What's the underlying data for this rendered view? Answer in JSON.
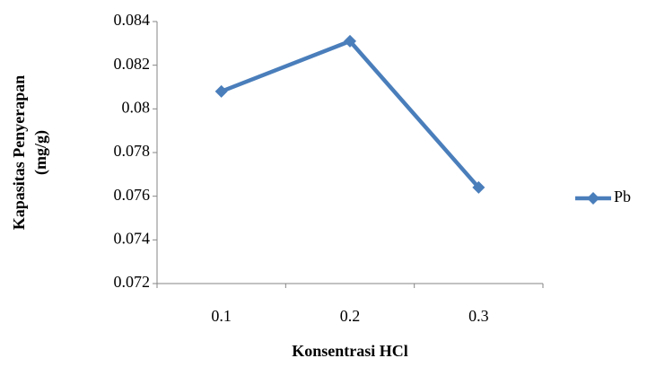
{
  "chart_data": {
    "type": "line",
    "x_label": "Konsentrasi HCl",
    "y_label": [
      "Kapasitas Penyerapan",
      "(mg/g)"
    ],
    "categories": [
      "0.1",
      "0.2",
      "0.3"
    ],
    "series": [
      {
        "name": "Pb",
        "color": "#4a7ebb",
        "values": [
          0.0808,
          0.0831,
          0.0764
        ]
      }
    ],
    "ylim": [
      0.072,
      0.084
    ],
    "yticks": [
      0.072,
      0.074,
      0.076,
      0.078,
      0.08,
      0.082,
      0.084
    ],
    "legend": "right"
  }
}
